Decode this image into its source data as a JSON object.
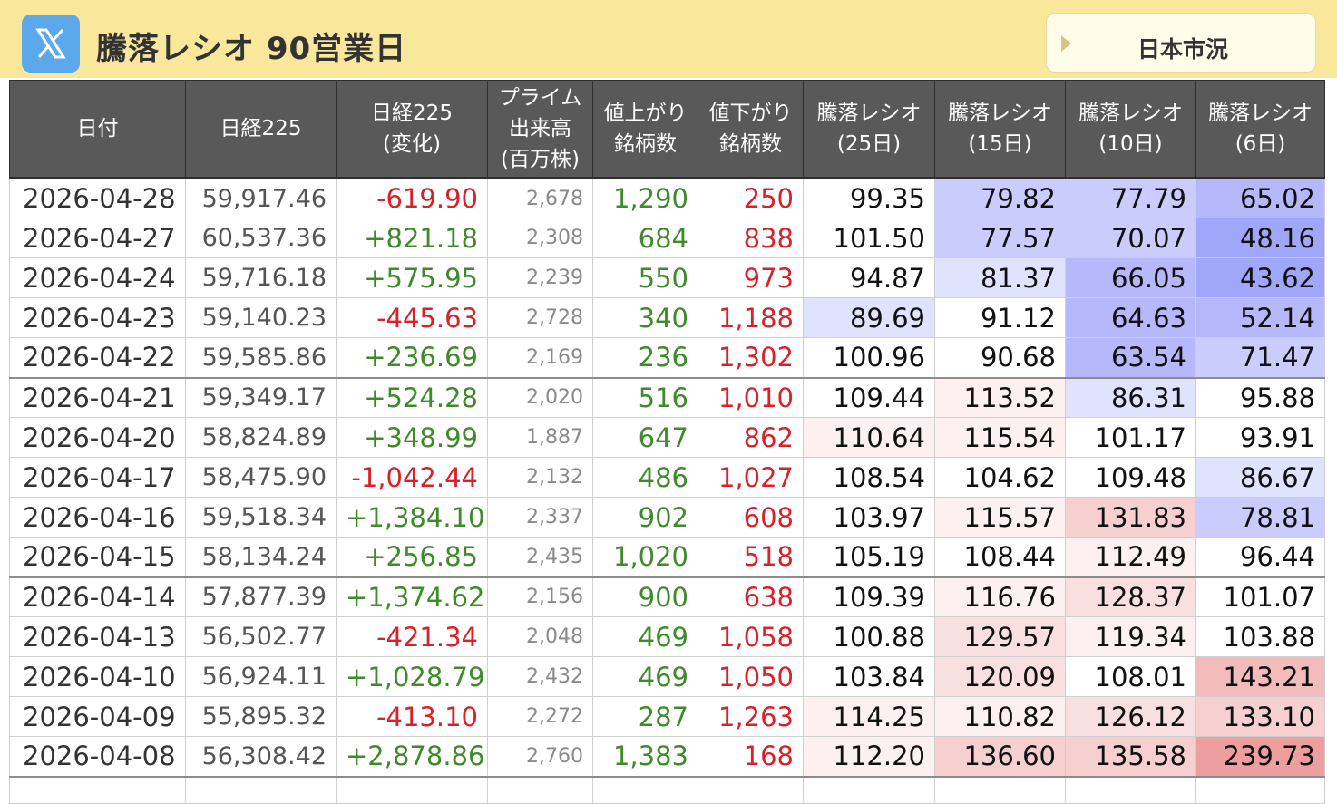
{
  "header": {
    "title": "騰落レシオ 90営業日",
    "market_button_label": "日本市況",
    "logo_icon": "x-logo-icon"
  },
  "table": {
    "columns": [
      "日付",
      "日経225",
      "日経225\n(変化)",
      "プライム\n出来高\n(百万株)",
      "値上がり\n銘柄数",
      "値下がり\n銘柄数",
      "騰落レシオ\n(25日)",
      "騰落レシオ\n(15日)",
      "騰落レシオ\n(10日)",
      "騰落レシオ\n(6日)"
    ],
    "rows": [
      {
        "date": "2026-04-28",
        "nikkei": "59,917.46",
        "change": "-619.90",
        "volume": "2,678",
        "up": "1,290",
        "down": "250",
        "r25": "99.35",
        "r15": "79.82",
        "r10": "77.79",
        "r6": "65.02"
      },
      {
        "date": "2026-04-27",
        "nikkei": "60,537.36",
        "change": "+821.18",
        "volume": "2,308",
        "up": "684",
        "down": "838",
        "r25": "101.50",
        "r15": "77.57",
        "r10": "70.07",
        "r6": "48.16"
      },
      {
        "date": "2026-04-24",
        "nikkei": "59,716.18",
        "change": "+575.95",
        "volume": "2,239",
        "up": "550",
        "down": "973",
        "r25": "94.87",
        "r15": "81.37",
        "r10": "66.05",
        "r6": "43.62"
      },
      {
        "date": "2026-04-23",
        "nikkei": "59,140.23",
        "change": "-445.63",
        "volume": "2,728",
        "up": "340",
        "down": "1,188",
        "r25": "89.69",
        "r15": "91.12",
        "r10": "64.63",
        "r6": "52.14"
      },
      {
        "date": "2026-04-22",
        "nikkei": "59,585.86",
        "change": "+236.69",
        "volume": "2,169",
        "up": "236",
        "down": "1,302",
        "r25": "100.96",
        "r15": "90.68",
        "r10": "63.54",
        "r6": "71.47"
      },
      {
        "date": "2026-04-21",
        "nikkei": "59,349.17",
        "change": "+524.28",
        "volume": "2,020",
        "up": "516",
        "down": "1,010",
        "r25": "109.44",
        "r15": "113.52",
        "r10": "86.31",
        "r6": "95.88"
      },
      {
        "date": "2026-04-20",
        "nikkei": "58,824.89",
        "change": "+348.99",
        "volume": "1,887",
        "up": "647",
        "down": "862",
        "r25": "110.64",
        "r15": "115.54",
        "r10": "101.17",
        "r6": "93.91"
      },
      {
        "date": "2026-04-17",
        "nikkei": "58,475.90",
        "change": "-1,042.44",
        "volume": "2,132",
        "up": "486",
        "down": "1,027",
        "r25": "108.54",
        "r15": "104.62",
        "r10": "109.48",
        "r6": "86.67"
      },
      {
        "date": "2026-04-16",
        "nikkei": "59,518.34",
        "change": "+1,384.10",
        "volume": "2,337",
        "up": "902",
        "down": "608",
        "r25": "103.97",
        "r15": "115.57",
        "r10": "131.83",
        "r6": "78.81"
      },
      {
        "date": "2026-04-15",
        "nikkei": "58,134.24",
        "change": "+256.85",
        "volume": "2,435",
        "up": "1,020",
        "down": "518",
        "r25": "105.19",
        "r15": "108.44",
        "r10": "112.49",
        "r6": "96.44"
      },
      {
        "date": "2026-04-14",
        "nikkei": "57,877.39",
        "change": "+1,374.62",
        "volume": "2,156",
        "up": "900",
        "down": "638",
        "r25": "109.39",
        "r15": "116.76",
        "r10": "128.37",
        "r6": "101.07"
      },
      {
        "date": "2026-04-13",
        "nikkei": "56,502.77",
        "change": "-421.34",
        "volume": "2,048",
        "up": "469",
        "down": "1,058",
        "r25": "100.88",
        "r15": "129.57",
        "r10": "119.34",
        "r6": "103.88"
      },
      {
        "date": "2026-04-10",
        "nikkei": "56,924.11",
        "change": "+1,028.79",
        "volume": "2,432",
        "up": "469",
        "down": "1,050",
        "r25": "103.84",
        "r15": "120.09",
        "r10": "108.01",
        "r6": "143.21"
      },
      {
        "date": "2026-04-09",
        "nikkei": "55,895.32",
        "change": "-413.10",
        "volume": "2,272",
        "up": "287",
        "down": "1,263",
        "r25": "114.25",
        "r15": "110.82",
        "r10": "126.12",
        "r6": "133.10"
      },
      {
        "date": "2026-04-08",
        "nikkei": "56,308.42",
        "change": "+2,878.86",
        "volume": "2,760",
        "up": "1,383",
        "down": "168",
        "r25": "112.20",
        "r15": "136.60",
        "r10": "135.58",
        "r6": "239.73"
      }
    ]
  },
  "colors": {
    "header_bar": "#f9e79c",
    "column_header_bg": "#595959",
    "positive": "#3f8a2a",
    "negative": "#d8222a",
    "logo_bg": "#5ba9ea"
  }
}
